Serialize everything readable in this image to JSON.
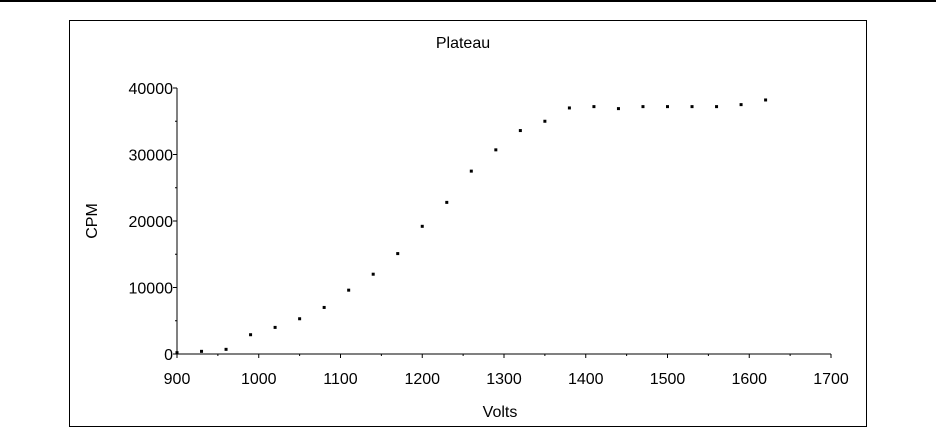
{
  "chart_data": {
    "type": "scatter",
    "title": "Plateau",
    "xlabel": "Volts",
    "ylabel": "CPM",
    "xlim": [
      900,
      1700
    ],
    "ylim": [
      0,
      40000
    ],
    "x_ticks": [
      900,
      1000,
      1100,
      1200,
      1300,
      1400,
      1500,
      1600,
      1700
    ],
    "y_ticks": [
      0,
      10000,
      20000,
      30000,
      40000
    ],
    "x_tick_labels": [
      "900",
      "1000",
      "1100",
      "1200",
      "1300",
      "1400",
      "1500",
      "1600",
      "1700"
    ],
    "y_tick_labels": [
      "0",
      "10000",
      "20000",
      "30000",
      "40000"
    ],
    "grid": false,
    "legend": "none",
    "marker_color": "#000000",
    "points": [
      {
        "x": 900,
        "y": 200
      },
      {
        "x": 930,
        "y": 400
      },
      {
        "x": 960,
        "y": 700
      },
      {
        "x": 990,
        "y": 2900
      },
      {
        "x": 1020,
        "y": 4000
      },
      {
        "x": 1050,
        "y": 5300
      },
      {
        "x": 1080,
        "y": 7000
      },
      {
        "x": 1110,
        "y": 9600
      },
      {
        "x": 1140,
        "y": 12000
      },
      {
        "x": 1170,
        "y": 15100
      },
      {
        "x": 1200,
        "y": 19200
      },
      {
        "x": 1230,
        "y": 22800
      },
      {
        "x": 1260,
        "y": 27500
      },
      {
        "x": 1290,
        "y": 30700
      },
      {
        "x": 1320,
        "y": 33600
      },
      {
        "x": 1350,
        "y": 35000
      },
      {
        "x": 1380,
        "y": 37000
      },
      {
        "x": 1410,
        "y": 37200
      },
      {
        "x": 1440,
        "y": 36900
      },
      {
        "x": 1470,
        "y": 37200
      },
      {
        "x": 1500,
        "y": 37200
      },
      {
        "x": 1530,
        "y": 37200
      },
      {
        "x": 1560,
        "y": 37200
      },
      {
        "x": 1590,
        "y": 37500
      },
      {
        "x": 1620,
        "y": 38200
      }
    ]
  }
}
